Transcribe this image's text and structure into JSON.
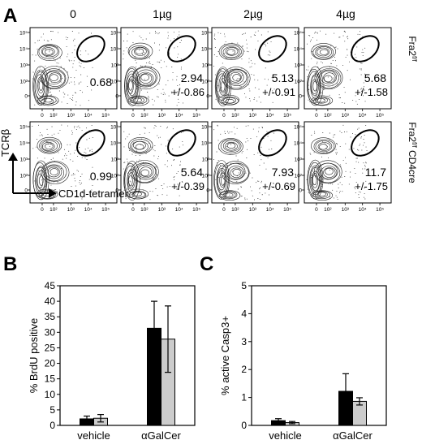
{
  "panel_labels": {
    "a": "A",
    "b": "B",
    "c": "C"
  },
  "flow": {
    "doses": [
      "0",
      "1µg",
      "2µg",
      "4µg"
    ],
    "rows": [
      {
        "label": "Fra2",
        "label_sup": "f/f",
        "label_suffix": "",
        "cells": [
          {
            "value": "0.68",
            "sd": ""
          },
          {
            "value": "2.94",
            "sd": "+/-0.86"
          },
          {
            "value": "5.13",
            "sd": "+/-0.91"
          },
          {
            "value": "5.68",
            "sd": "+/-1.58"
          }
        ]
      },
      {
        "label": "Fra2",
        "label_sup": "f/f",
        "label_suffix": " CD4cre",
        "cells": [
          {
            "value": "0.99",
            "sd": ""
          },
          {
            "value": "5.64",
            "sd": "+/-0.39"
          },
          {
            "value": "7.93",
            "sd": "+/-0.69"
          },
          {
            "value": "11.7",
            "sd": "+/-1.75"
          }
        ]
      }
    ],
    "y_axis_label": "TCRβ",
    "x_axis_label": "CD1d-tetramer",
    "y_tick_labels": [
      "10⁵",
      "10⁴",
      "10³",
      "10²",
      "0"
    ],
    "x_tick_labels": [
      "0",
      "10²",
      "10³",
      "10⁴",
      "10⁵"
    ]
  },
  "chart_data": [
    {
      "type": "bar",
      "panel": "B",
      "title": "",
      "xlabel": "",
      "ylabel": "% BrdU positive",
      "categories": [
        "vehicle",
        "αGalCer"
      ],
      "series": [
        {
          "color": "#000000",
          "values": [
            2.1,
            31.3
          ],
          "errors": [
            0.9,
            8.7
          ]
        },
        {
          "color": "#cccccc",
          "values": [
            2.3,
            27.8
          ],
          "errors": [
            1.2,
            10.7
          ]
        }
      ],
      "ylim": [
        0,
        45
      ],
      "yticks": [
        0,
        5,
        10,
        15,
        20,
        25,
        30,
        35,
        40,
        45
      ],
      "grid": false
    },
    {
      "type": "bar",
      "panel": "C",
      "title": "",
      "xlabel": "",
      "ylabel": "% active Casp3+",
      "categories": [
        "vehicle",
        "αGalCer"
      ],
      "series": [
        {
          "color": "#000000",
          "values": [
            0.17,
            1.22
          ],
          "errors": [
            0.07,
            0.63
          ]
        },
        {
          "color": "#cccccc",
          "values": [
            0.1,
            0.86
          ],
          "errors": [
            0.04,
            0.13
          ]
        }
      ],
      "ylim": [
        0,
        5
      ],
      "yticks": [
        0,
        1,
        2,
        3,
        4,
        5
      ],
      "grid": false
    }
  ]
}
